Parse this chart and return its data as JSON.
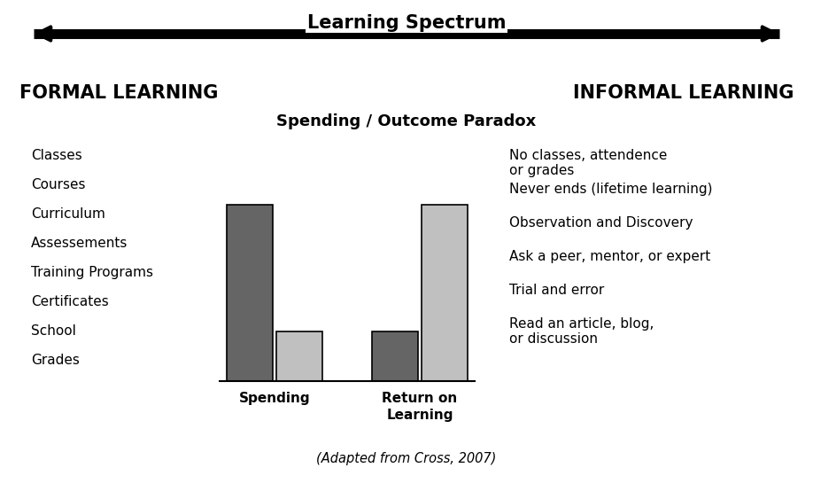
{
  "title": "Learning Spectrum",
  "formal_heading": "FORMAL LEARNING",
  "informal_heading": "INFORMAL LEARNING",
  "paradox_title": "Spending / Outcome Paradox",
  "formal_items": [
    "Classes",
    "Courses",
    "Curriculum",
    "Assessements",
    "Training Programs",
    "Certificates",
    "School",
    "Grades"
  ],
  "informal_items": [
    "No classes, attendence\nor grades",
    "Never ends (lifetime learning)",
    "Observation and Discovery",
    "Ask a peer, mentor, or expert",
    "Trial and error",
    "Read an article, blog,\nor discussion"
  ],
  "citation": "(Adapted from Cross, 2007)",
  "spending_formal": 0.78,
  "spending_informal": 0.22,
  "return_formal": 0.22,
  "return_informal": 0.78,
  "background_color": "#ffffff",
  "text_color": "#000000",
  "dark_bar_color": "#656565",
  "light_bar_color": "#c0c0c0"
}
